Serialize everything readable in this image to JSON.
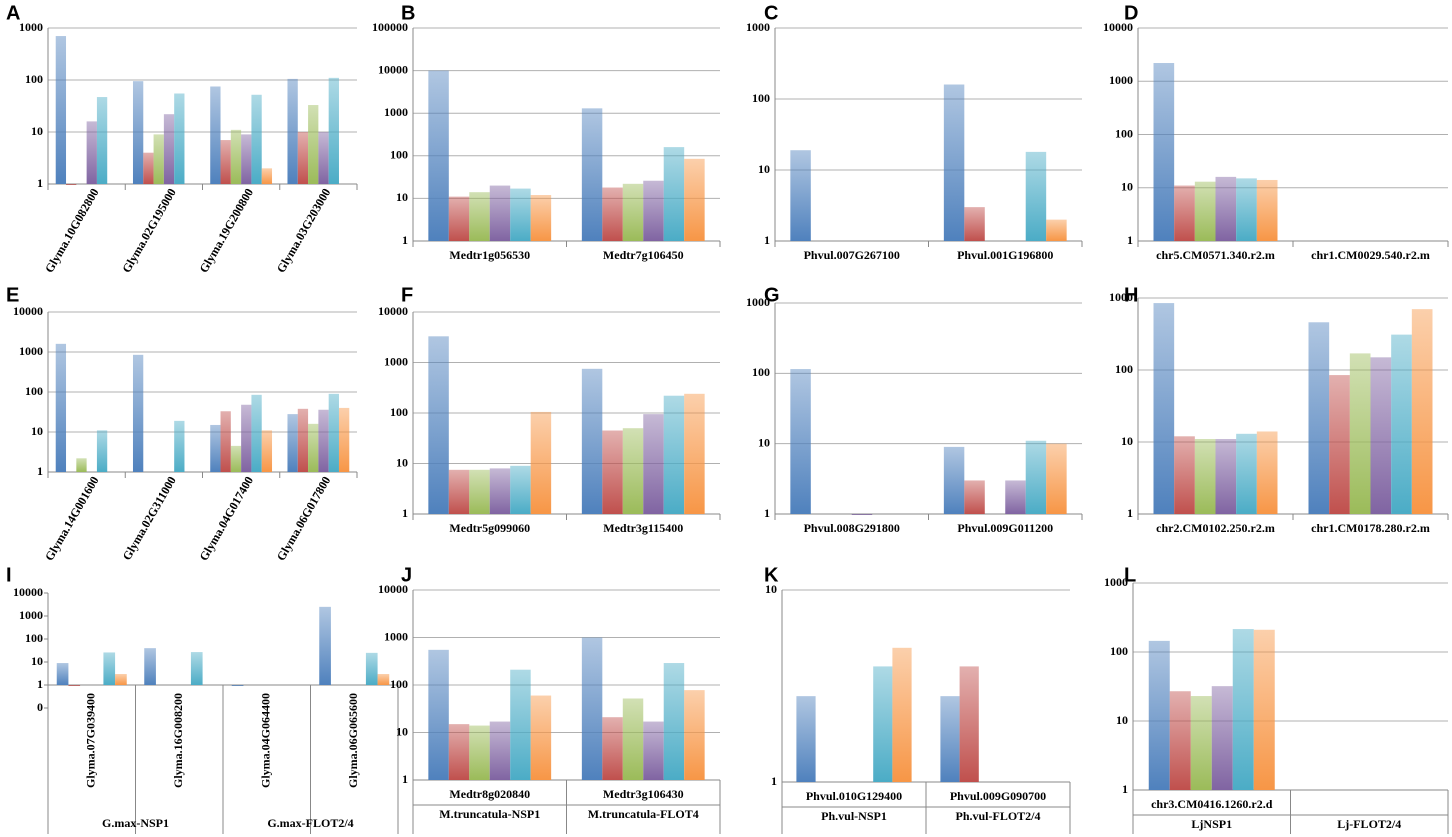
{
  "chart_data": [
    {
      "label": "A",
      "type": "bar",
      "log": true,
      "grid": true,
      "rotate_labels": true,
      "categories": [
        "Glyma.10G082800",
        "Glyma.02G195000",
        "Glyma.19G200800",
        "Glyma.03G203000"
      ],
      "ylim": [
        1,
        1000
      ],
      "yticks": [
        1,
        10,
        100,
        1000
      ],
      "series": [
        {
          "color": "#4f81bd",
          "values": [
            700,
            95,
            75,
            105
          ]
        },
        {
          "color": "#c0504d",
          "values": [
            1,
            4,
            7,
            10
          ]
        },
        {
          "color": "#9bbb59",
          "values": [
            null,
            9,
            11,
            33
          ]
        },
        {
          "color": "#8064a2",
          "values": [
            16,
            22,
            9,
            10
          ]
        },
        {
          "color": "#4bacc6",
          "values": [
            47,
            55,
            52,
            110
          ]
        },
        {
          "color": "#f79646",
          "values": [
            null,
            null,
            2,
            null
          ]
        }
      ]
    },
    {
      "label": "B",
      "type": "bar",
      "log": true,
      "grid": true,
      "categories": [
        "Medtr1g056530",
        "Medtr7g106450"
      ],
      "ylim": [
        1,
        100000
      ],
      "yticks": [
        1,
        10,
        100,
        1000,
        10000,
        100000
      ],
      "series": [
        {
          "color": "#4f81bd",
          "values": [
            10000,
            1300
          ]
        },
        {
          "color": "#c0504d",
          "values": [
            11,
            18
          ]
        },
        {
          "color": "#9bbb59",
          "values": [
            14,
            22
          ]
        },
        {
          "color": "#8064a2",
          "values": [
            20,
            26
          ]
        },
        {
          "color": "#4bacc6",
          "values": [
            17,
            160
          ]
        },
        {
          "color": "#f79646",
          "values": [
            12,
            85
          ]
        }
      ]
    },
    {
      "label": "C",
      "type": "bar",
      "log": true,
      "grid": true,
      "categories": [
        "Phvul.007G267100",
        "Phvul.001G196800"
      ],
      "ylim": [
        1,
        1000
      ],
      "yticks": [
        1,
        10,
        100,
        1000
      ],
      "series": [
        {
          "color": "#4f81bd",
          "values": [
            19,
            160
          ]
        },
        {
          "color": "#c0504d",
          "values": [
            null,
            3
          ]
        },
        {
          "color": "#9bbb59",
          "values": [
            null,
            null
          ]
        },
        {
          "color": "#8064a2",
          "values": [
            null,
            null
          ]
        },
        {
          "color": "#4bacc6",
          "values": [
            null,
            18
          ]
        },
        {
          "color": "#f79646",
          "values": [
            null,
            2
          ]
        }
      ]
    },
    {
      "label": "D",
      "type": "bar",
      "log": true,
      "grid": true,
      "categories": [
        "chr5.CM0571.340.r2.m",
        "chr1.CM0029.540.r2.m"
      ],
      "ylim": [
        1,
        10000
      ],
      "yticks": [
        1,
        10,
        100,
        1000,
        10000
      ],
      "series": [
        {
          "color": "#4f81bd",
          "values": [
            2200,
            null
          ]
        },
        {
          "color": "#c0504d",
          "values": [
            11,
            null
          ]
        },
        {
          "color": "#9bbb59",
          "values": [
            13,
            null
          ]
        },
        {
          "color": "#8064a2",
          "values": [
            16,
            null
          ]
        },
        {
          "color": "#4bacc6",
          "values": [
            15,
            null
          ]
        },
        {
          "color": "#f79646",
          "values": [
            14,
            null
          ]
        }
      ]
    },
    {
      "label": "E",
      "type": "bar",
      "log": true,
      "grid": true,
      "rotate_labels": true,
      "categories": [
        "Glyma.14G001600",
        "Glyma.02G311000",
        "Glyma.04G017400",
        "Glyma.06G017800"
      ],
      "ylim": [
        1,
        10000
      ],
      "yticks": [
        1,
        10,
        100,
        1000,
        10000
      ],
      "series": [
        {
          "color": "#4f81bd",
          "values": [
            1600,
            850,
            15,
            28
          ]
        },
        {
          "color": "#c0504d",
          "values": [
            null,
            null,
            33,
            38
          ]
        },
        {
          "color": "#9bbb59",
          "values": [
            2.2,
            null,
            4.5,
            16
          ]
        },
        {
          "color": "#8064a2",
          "values": [
            null,
            null,
            48,
            36
          ]
        },
        {
          "color": "#4bacc6",
          "values": [
            11,
            19,
            85,
            90
          ]
        },
        {
          "color": "#f79646",
          "values": [
            null,
            null,
            11,
            40
          ]
        }
      ]
    },
    {
      "label": "F",
      "type": "bar",
      "log": true,
      "grid": true,
      "categories": [
        "Medtr5g099060",
        "Medtr3g115400"
      ],
      "ylim": [
        1,
        10000
      ],
      "yticks": [
        1,
        10,
        100,
        1000,
        10000
      ],
      "series": [
        {
          "color": "#4f81bd",
          "values": [
            3300,
            750
          ]
        },
        {
          "color": "#c0504d",
          "values": [
            7.5,
            45
          ]
        },
        {
          "color": "#9bbb59",
          "values": [
            7.5,
            50
          ]
        },
        {
          "color": "#8064a2",
          "values": [
            8,
            95
          ]
        },
        {
          "color": "#4bacc6",
          "values": [
            9,
            220
          ]
        },
        {
          "color": "#f79646",
          "values": [
            105,
            240
          ]
        }
      ]
    },
    {
      "label": "G",
      "type": "bar",
      "log": true,
      "grid": true,
      "categories": [
        "Phvul.008G291800",
        "Phvul.009G011200"
      ],
      "ylim": [
        1,
        1000
      ],
      "yticks": [
        1,
        10,
        100,
        1000
      ],
      "series": [
        {
          "color": "#4f81bd",
          "values": [
            115,
            9
          ]
        },
        {
          "color": "#c0504d",
          "values": [
            null,
            3
          ]
        },
        {
          "color": "#9bbb59",
          "values": [
            null,
            null
          ]
        },
        {
          "color": "#8064a2",
          "values": [
            1,
            3
          ]
        },
        {
          "color": "#4bacc6",
          "values": [
            null,
            11
          ]
        },
        {
          "color": "#f79646",
          "values": [
            null,
            10
          ]
        }
      ]
    },
    {
      "label": "H",
      "type": "bar",
      "log": true,
      "grid": true,
      "categories": [
        "chr2.CM0102.250.r2.m",
        "chr1.CM0178.280.r2.m"
      ],
      "ylim": [
        1,
        1000
      ],
      "yticks": [
        1,
        10,
        100,
        1000
      ],
      "series": [
        {
          "color": "#4f81bd",
          "values": [
            850,
            460
          ]
        },
        {
          "color": "#c0504d",
          "values": [
            12,
            85
          ]
        },
        {
          "color": "#9bbb59",
          "values": [
            11,
            170
          ]
        },
        {
          "color": "#8064a2",
          "values": [
            11,
            150
          ]
        },
        {
          "color": "#4bacc6",
          "values": [
            13,
            310
          ]
        },
        {
          "color": "#f79646",
          "values": [
            14,
            700
          ]
        }
      ]
    },
    {
      "label": "I",
      "type": "bar",
      "log": true,
      "grid": false,
      "rotate_labels": true,
      "categories": [
        "Glyma.07G039400",
        "Glyma.16G008200",
        "Glyma.04G064400",
        "Glyma.06G065600"
      ],
      "groups": [
        "G.max-NSP1",
        "G.max-FLOT2/4"
      ],
      "ylim": [
        0.1,
        10000
      ],
      "yticks": [
        {
          "value": 0.1,
          "label": "0"
        },
        1,
        10,
        100,
        1000,
        10000
      ],
      "series": [
        {
          "color": "#4f81bd",
          "values": [
            9,
            40,
            1,
            2500
          ]
        },
        {
          "color": "#c0504d",
          "values": [
            1,
            null,
            null,
            null
          ]
        },
        {
          "color": "#9bbb59",
          "values": [
            null,
            null,
            null,
            null
          ]
        },
        {
          "color": "#8064a2",
          "values": [
            null,
            null,
            null,
            null
          ]
        },
        {
          "color": "#4bacc6",
          "values": [
            26,
            27,
            null,
            25
          ]
        },
        {
          "color": "#f79646",
          "values": [
            3,
            null,
            null,
            3
          ]
        }
      ]
    },
    {
      "label": "J",
      "type": "bar",
      "log": true,
      "grid": true,
      "categories": [
        "Medtr8g020840",
        "Medtr3g106430"
      ],
      "groups": [
        "M.truncatula-NSP1",
        "M.truncatula-FLOT4"
      ],
      "ylim": [
        1,
        10000
      ],
      "yticks": [
        1,
        10,
        100,
        1000,
        10000
      ],
      "series": [
        {
          "color": "#4f81bd",
          "values": [
            550,
            1000
          ]
        },
        {
          "color": "#c0504d",
          "values": [
            15,
            21
          ]
        },
        {
          "color": "#9bbb59",
          "values": [
            14,
            52
          ]
        },
        {
          "color": "#8064a2",
          "values": [
            17,
            17
          ]
        },
        {
          "color": "#4bacc6",
          "values": [
            210,
            290
          ]
        },
        {
          "color": "#f79646",
          "values": [
            60,
            78
          ]
        }
      ]
    },
    {
      "label": "K",
      "type": "bar",
      "log": true,
      "grid": true,
      "categories": [
        "Phvul.010G129400",
        "Phvul.009G090700"
      ],
      "groups": [
        "Ph.vul-NSP1",
        "Ph.vul-FLOT2/4"
      ],
      "ylim": [
        1,
        10
      ],
      "yticks": [
        1,
        10
      ],
      "series": [
        {
          "color": "#4f81bd",
          "values": [
            2.8,
            2.8
          ]
        },
        {
          "color": "#c0504d",
          "values": [
            null,
            4
          ]
        },
        {
          "color": "#9bbb59",
          "values": [
            null,
            null
          ]
        },
        {
          "color": "#8064a2",
          "values": [
            null,
            null
          ]
        },
        {
          "color": "#4bacc6",
          "values": [
            4,
            null
          ]
        },
        {
          "color": "#f79646",
          "values": [
            5,
            null
          ]
        }
      ]
    },
    {
      "label": "L",
      "type": "bar",
      "log": true,
      "grid": true,
      "categories": [
        "chr3.CM0416.1260.r2.d",
        null
      ],
      "groups": [
        "LjNSP1",
        "Lj-FLOT2/4"
      ],
      "ylim": [
        1,
        1000
      ],
      "yticks": [
        1,
        10,
        100,
        1000
      ],
      "series": [
        {
          "color": "#4f81bd",
          "values": [
            145,
            null
          ]
        },
        {
          "color": "#c0504d",
          "values": [
            27,
            null
          ]
        },
        {
          "color": "#9bbb59",
          "values": [
            23,
            null
          ]
        },
        {
          "color": "#8064a2",
          "values": [
            32,
            null
          ]
        },
        {
          "color": "#4bacc6",
          "values": [
            215,
            null
          ]
        },
        {
          "color": "#f79646",
          "values": [
            210,
            null
          ]
        }
      ]
    }
  ]
}
